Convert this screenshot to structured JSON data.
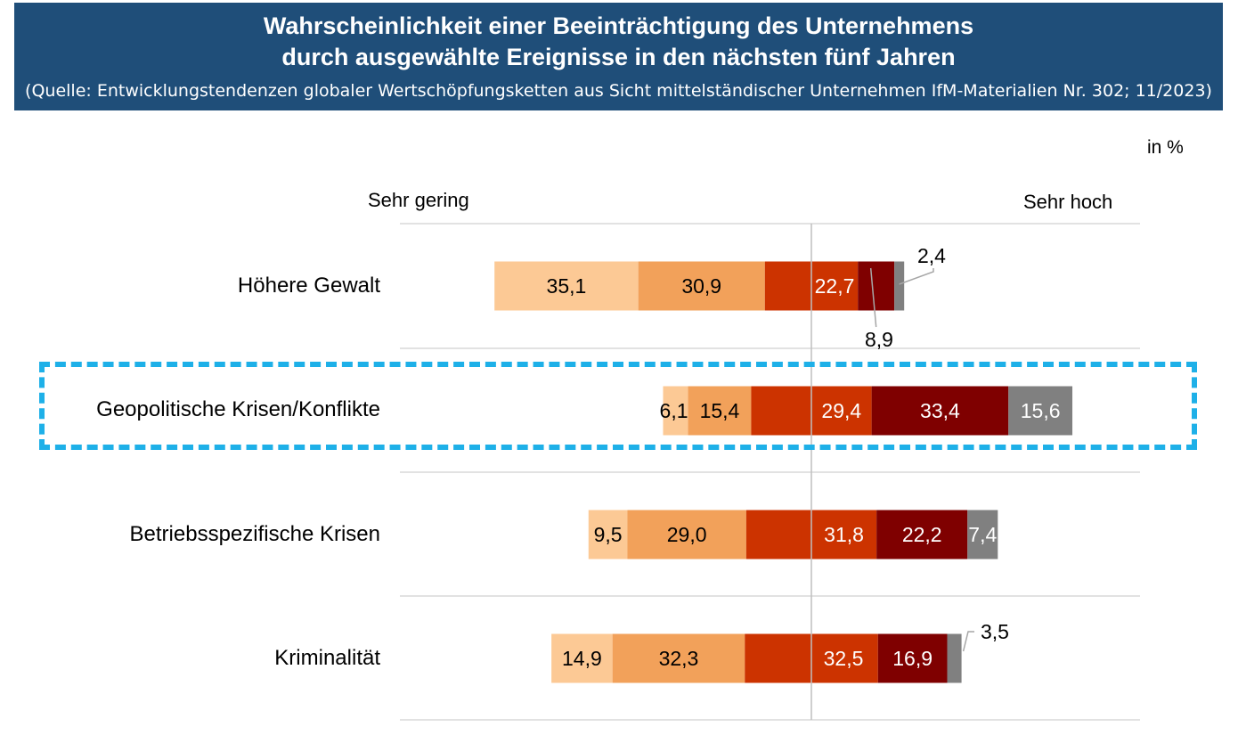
{
  "header": {
    "title_line1": "Wahrscheinlichkeit einer Beeinträchtigung des Unternehmens",
    "title_line2": "durch ausgewählte Ereignisse in den nächsten fünf Jahren",
    "source": "(Quelle: Entwicklungstendenzen globaler Wertschöpfungsketten aus Sicht mittelständischer Unternehmen IfM-Materialien Nr. 302; 11/2023)"
  },
  "chart_data": {
    "type": "bar",
    "orientation": "horizontal-diverging-stacked",
    "unit_label": "in %",
    "scale_left_label": "Sehr gering",
    "scale_right_label": "Sehr hoch",
    "categories": [
      "Höhere Gewalt",
      "Geopolitische Krisen/Konflikte",
      "Betriebsspezifische Krisen",
      "Kriminalität"
    ],
    "series": [
      {
        "values": [
          35.1,
          6.1,
          9.5,
          14.9
        ],
        "color": "#fcc995"
      },
      {
        "values": [
          30.9,
          15.4,
          29.0,
          32.3
        ],
        "color": "#f2a15a"
      },
      {
        "values": [
          22.7,
          29.4,
          31.8,
          32.5
        ],
        "color": "#cc3300"
      },
      {
        "values": [
          8.9,
          33.4,
          22.2,
          16.9
        ],
        "color": "#7f0000"
      },
      {
        "values": [
          2.4,
          15.6,
          7.4,
          3.5
        ],
        "color": "#808080"
      }
    ],
    "value_labels": [
      [
        "35,1",
        "30,9",
        "22,7",
        "8,9",
        "2,4"
      ],
      [
        "6,1",
        "15,4",
        "29,4",
        "33,4",
        "15,6"
      ],
      [
        "9,5",
        "29,0",
        "31,8",
        "22,2",
        "7,4"
      ],
      [
        "14,9",
        "32,3",
        "32,5",
        "16,9",
        "3,5"
      ]
    ],
    "highlighted_category": "Geopolitische Krisen/Konflikte"
  }
}
